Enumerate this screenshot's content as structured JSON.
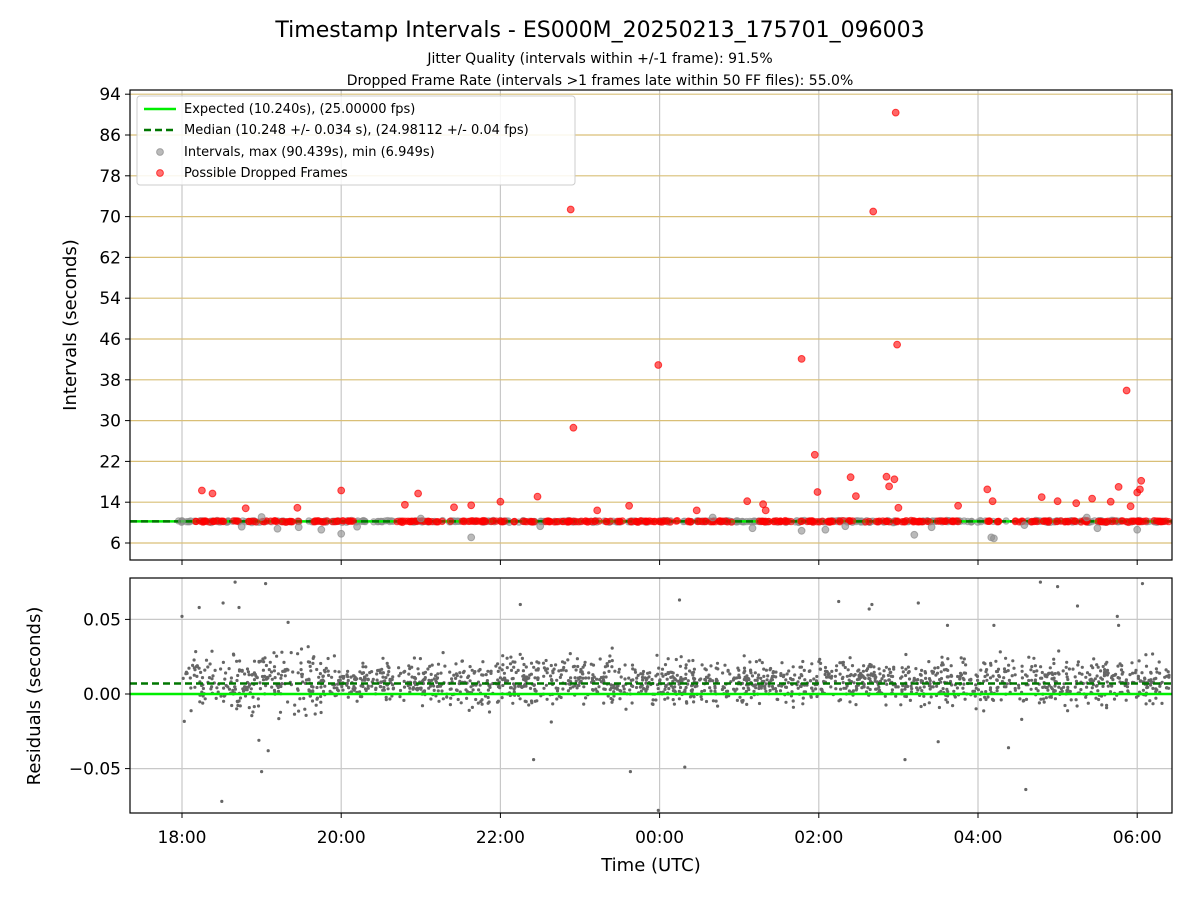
{
  "title": "Timestamp Intervals - ES000M_20250213_175701_096003",
  "subtitle_1": "Jitter Quality (intervals within +/-1 frame): 91.5%",
  "subtitle_2": "Dropped Frame Rate (intervals >1 frames late within 50 FF files): 55.0%",
  "colors": {
    "expected": "#00ee00",
    "median": "#007700",
    "intervals": "#8c8c8c",
    "dropped": "#ff0000",
    "residuals": "#666666",
    "hgrid_top": "#d9bf77",
    "grid": "#c8c8c8"
  },
  "chart_data": [
    {
      "type": "scatter",
      "ylabel": "Intervals (seconds)",
      "ylim": [
        3,
        97
      ],
      "y_ticks": [
        "6",
        "14",
        "22",
        "30",
        "38",
        "46",
        "54",
        "62",
        "70",
        "78",
        "86",
        "94"
      ],
      "grid": true,
      "legend_position": "top-left",
      "legend": [
        "Expected (10.240s), (25.00000 fps)",
        "Median (10.248 +/- 0.034 s), (24.98112 +/- 0.04 fps)",
        "Intervals, max (90.439s), min (6.949s)",
        "Possible Dropped Frames"
      ],
      "expected_interval_s": 10.24,
      "median_interval_s": 10.248,
      "series": [
        {
          "name": "Possible Dropped Frames",
          "x": [
            "18:15",
            "18:23",
            "18:48",
            "19:27",
            "20:00",
            "20:48",
            "20:58",
            "21:25",
            "21:38",
            "22:00",
            "22:28",
            "22:53",
            "22:55",
            "23:13",
            "23:37",
            "23:59",
            "00:28",
            "01:06",
            "01:18",
            "01:20",
            "01:47",
            "01:57",
            "01:59",
            "02:24",
            "02:28",
            "02:41",
            "02:51",
            "02:53",
            "02:57",
            "02:58",
            "02:59",
            "03:00",
            "03:45",
            "04:07",
            "04:11",
            "04:48",
            "05:00",
            "05:14",
            "05:26",
            "05:40",
            "05:46",
            "05:52",
            "05:55",
            "06:00",
            "06:02",
            "06:03"
          ],
          "y": [
            16.3,
            15.7,
            12.8,
            12.9,
            16.3,
            13.5,
            15.7,
            13.0,
            13.4,
            14.1,
            15.1,
            71.4,
            28.6,
            12.4,
            13.3,
            40.9,
            12.4,
            14.2,
            13.6,
            12.4,
            42.1,
            23.3,
            16.0,
            18.9,
            15.2,
            71.0,
            19.0,
            17.1,
            18.5,
            90.4,
            44.9,
            12.9,
            13.3,
            16.5,
            14.2,
            15.0,
            14.2,
            13.8,
            14.7,
            14.1,
            17.0,
            35.9,
            13.2,
            15.9,
            16.5,
            18.2
          ]
        },
        {
          "name": "Intervals",
          "x": [
            "18:00",
            "18:45",
            "19:00",
            "19:12",
            "19:28",
            "19:45",
            "20:00",
            "20:12",
            "21:00",
            "21:38",
            "22:30",
            "00:40",
            "01:10",
            "01:47",
            "02:05",
            "02:20",
            "03:12",
            "03:25",
            "04:10",
            "04:12",
            "04:35",
            "05:22",
            "05:30",
            "06:00"
          ],
          "y": [
            10.3,
            9.2,
            11.1,
            8.8,
            9.1,
            8.6,
            7.8,
            9.2,
            10.8,
            7.1,
            9.3,
            11.0,
            8.9,
            8.4,
            8.6,
            9.3,
            7.6,
            9.1,
            7.1,
            6.9,
            9.5,
            11.0,
            8.9,
            8.6
          ]
        }
      ]
    },
    {
      "type": "scatter",
      "xlabel": "Time (UTC)",
      "ylabel": "Residuals (seconds)",
      "ylim": [
        -0.08,
        0.08
      ],
      "y_ticks": [
        "−0.05",
        "0.00",
        "0.05"
      ],
      "x_ticks": [
        "18:00",
        "20:00",
        "22:00",
        "00:00",
        "02:00",
        "04:00",
        "06:00"
      ],
      "grid": true,
      "expected_residual_s": 0.0,
      "median_residual_s": 0.007,
      "series": [
        {
          "name": "Residuals",
          "x": [
            "18:00",
            "18:13",
            "18:30",
            "18:31",
            "18:40",
            "18:43",
            "18:58",
            "19:00",
            "19:03",
            "19:05",
            "19:20",
            "22:15",
            "22:25",
            "23:38",
            "23:59",
            "00:15",
            "00:19",
            "02:15",
            "02:38",
            "02:40",
            "03:05",
            "03:15",
            "03:30",
            "03:37",
            "04:12",
            "04:23",
            "04:36",
            "04:47",
            "05:00",
            "05:15",
            "05:45",
            "05:46",
            "06:04"
          ],
          "y": [
            0.052,
            0.058,
            -0.072,
            0.061,
            0.075,
            0.058,
            -0.031,
            -0.052,
            0.074,
            -0.038,
            0.048,
            0.06,
            -0.044,
            -0.052,
            -0.078,
            0.063,
            -0.049,
            0.062,
            0.057,
            0.06,
            -0.044,
            0.061,
            -0.032,
            0.046,
            0.046,
            -0.036,
            -0.064,
            0.075,
            0.072,
            0.059,
            0.052,
            0.046,
            0.074
          ]
        }
      ]
    }
  ]
}
